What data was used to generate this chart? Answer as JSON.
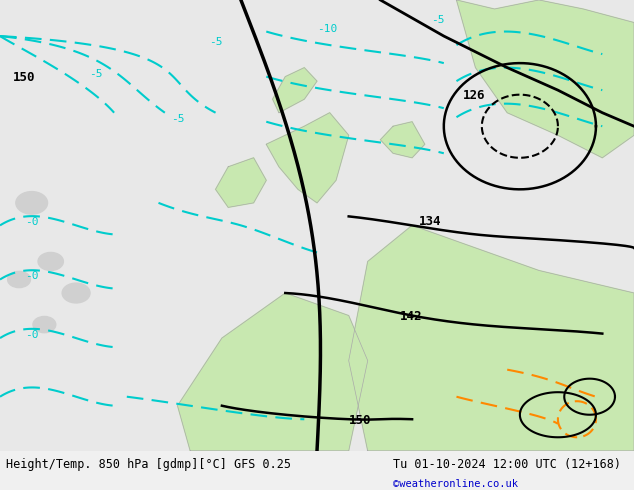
{
  "title_left": "Height/Temp. 850 hPa [gdmp][°C] GFS 0.25",
  "title_right": "Tu 01-10-2024 12:00 UTC (12+168)",
  "credit": "©weatheronline.co.uk",
  "background_color": "#e8e8e8",
  "land_color": "#d0d0d0",
  "green_land_color": "#c8e8b0",
  "contour_black_color": "#000000",
  "contour_cyan_color": "#00cccc",
  "contour_orange_color": "#ff8800",
  "fig_width": 6.34,
  "fig_height": 4.9,
  "dpi": 100,
  "bottom_bar_color": "#f0f0f0",
  "bottom_bar_height": 0.08
}
